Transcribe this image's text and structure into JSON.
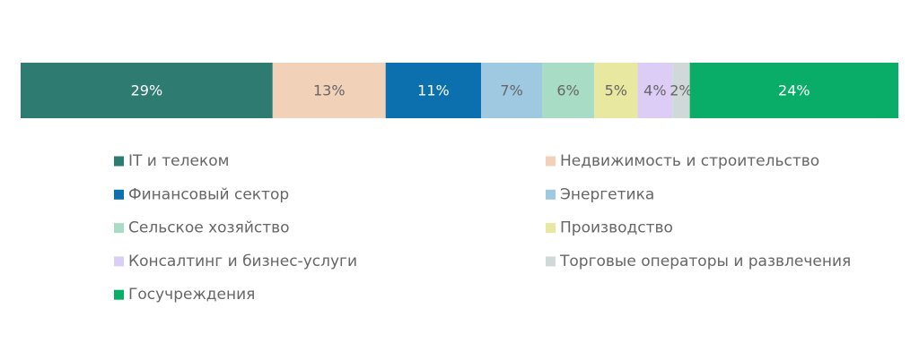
{
  "chart_data": {
    "type": "stacked-bar",
    "series": [
      {
        "name": "IT и телеком",
        "color": "#2e7b72",
        "values": [
          29
        ],
        "value_labels": [
          "29%"
        ]
      },
      {
        "name": "Недвижимость и строительство",
        "color": "#f2d1b9",
        "values": [
          13
        ],
        "value_labels": [
          "13%"
        ]
      },
      {
        "name": "Финансовый сектор",
        "color": "#0b70ad",
        "values": [
          11
        ],
        "value_labels": [
          "11%"
        ]
      },
      {
        "name": "Энергетика",
        "color": "#9ec9e0",
        "values": [
          7
        ],
        "value_labels": [
          "7%"
        ]
      },
      {
        "name": "Сельское хозяйство",
        "color": "#a8dcc4",
        "values": [
          6
        ],
        "value_labels": [
          "6%"
        ]
      },
      {
        "name": "Производство",
        "color": "#e8e8a0",
        "values": [
          5
        ],
        "value_labels": [
          "5%"
        ]
      },
      {
        "name": "Консалтинг и бизнес-услуги",
        "color": "#dccdf7",
        "values": [
          4
        ],
        "value_labels": [
          "4%"
        ]
      },
      {
        "name": "Торговые операторы и развлечения",
        "color": "#d0d8d8",
        "values": [
          2
        ],
        "value_labels": [
          "2%"
        ]
      },
      {
        "name": "Госучреждения",
        "color": "#0aad68",
        "values": [
          24
        ],
        "value_labels": [
          "24%"
        ]
      }
    ]
  }
}
